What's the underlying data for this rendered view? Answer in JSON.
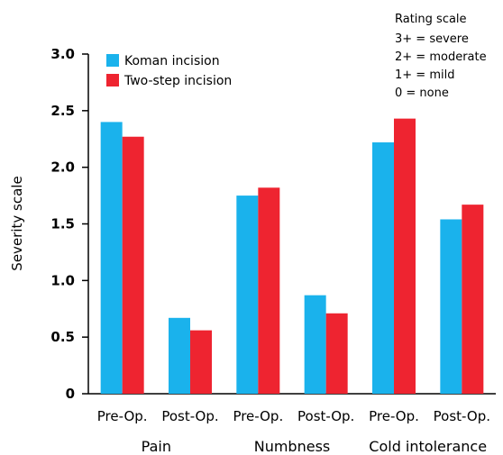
{
  "chart_data": {
    "type": "bar",
    "ylabel": "Severity scale",
    "ylim": [
      0,
      3.0
    ],
    "y_ticks": [
      "0",
      "0.5",
      "1.0",
      "1.5",
      "2.0",
      "2.5",
      "3.0"
    ],
    "categories": [
      "Pre-Op.",
      "Post-Op.",
      "Pre-Op.",
      "Post-Op.",
      "Pre-Op.",
      "Post-Op."
    ],
    "groups": [
      {
        "label": "Pain",
        "span": [
          0,
          1
        ]
      },
      {
        "label": "Numbness",
        "span": [
          2,
          3
        ]
      },
      {
        "label": "Cold intolerance",
        "span": [
          4,
          5
        ]
      }
    ],
    "series": [
      {
        "name": "Koman incision",
        "color": "#1AB2EC",
        "values": [
          2.4,
          0.67,
          1.75,
          0.87,
          2.22,
          1.54
        ]
      },
      {
        "name": "Two-step incision",
        "color": "#EE2430",
        "values": [
          2.27,
          0.56,
          1.82,
          0.71,
          2.43,
          1.67
        ]
      }
    ],
    "legend_position": "top-left",
    "annotation": {
      "title": "Rating scale",
      "lines": [
        "3+ = severe",
        "2+ = moderate",
        "1+ = mild",
        "0 = none"
      ]
    },
    "grid": false
  }
}
